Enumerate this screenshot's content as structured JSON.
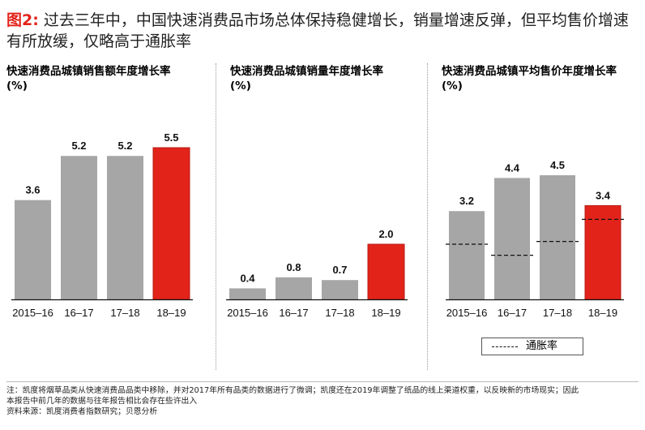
{
  "title": {
    "figure_label": "图2:",
    "text": "过去三年中，中国快速消费品市场总体保持稳健增长，销量增速反弹，但平均售价增速有所放缓，仅略高于通胀率"
  },
  "colors": {
    "gray": "#a6a6a7",
    "red": "#e2231a",
    "red_stroke": "#b51c15"
  },
  "chart_data": [
    {
      "type": "bar",
      "title": "快速消费品城镇销售额年度增长率",
      "unit": "(%)",
      "categories": [
        "2015–16",
        "16–17",
        "17–18",
        "18–19"
      ],
      "values": [
        3.6,
        5.2,
        5.2,
        5.5
      ],
      "highlight_index": 3,
      "ylim": [
        0,
        6.0
      ]
    },
    {
      "type": "bar",
      "title": "快速消费品城镇销量年度增长率",
      "unit": "(%)",
      "categories": [
        "2015–16",
        "16–17",
        "17–18",
        "18–19"
      ],
      "values": [
        0.4,
        0.8,
        0.7,
        2.0
      ],
      "highlight_index": 3,
      "ylim": [
        0,
        6.0
      ]
    },
    {
      "type": "bar",
      "title": "快速消费品城镇平均售价年度增长率",
      "unit": "(%)",
      "categories": [
        "2015–16",
        "16–17",
        "17–18",
        "18–19"
      ],
      "values": [
        3.2,
        4.4,
        4.5,
        3.4
      ],
      "highlight_index": 3,
      "ylim": [
        0,
        6.0
      ],
      "inflation": [
        2.0,
        1.6,
        2.1,
        2.9
      ],
      "legend": {
        "inflation_label": "通胀率",
        "position": "below"
      }
    }
  ],
  "notes": {
    "line1": "注：凯度将烟草品类从快速消费品品类中移除，并对2017年所有品类的数据进行了微调；凯度还在2019年调整了纸品的线上渠道权重，以反映新的市场现实；因此",
    "line2": "本报告中前几年的数据与往年报告相比会存在些许出入",
    "line3": "资料来源：凯度消费者指数研究；贝恩分析"
  }
}
